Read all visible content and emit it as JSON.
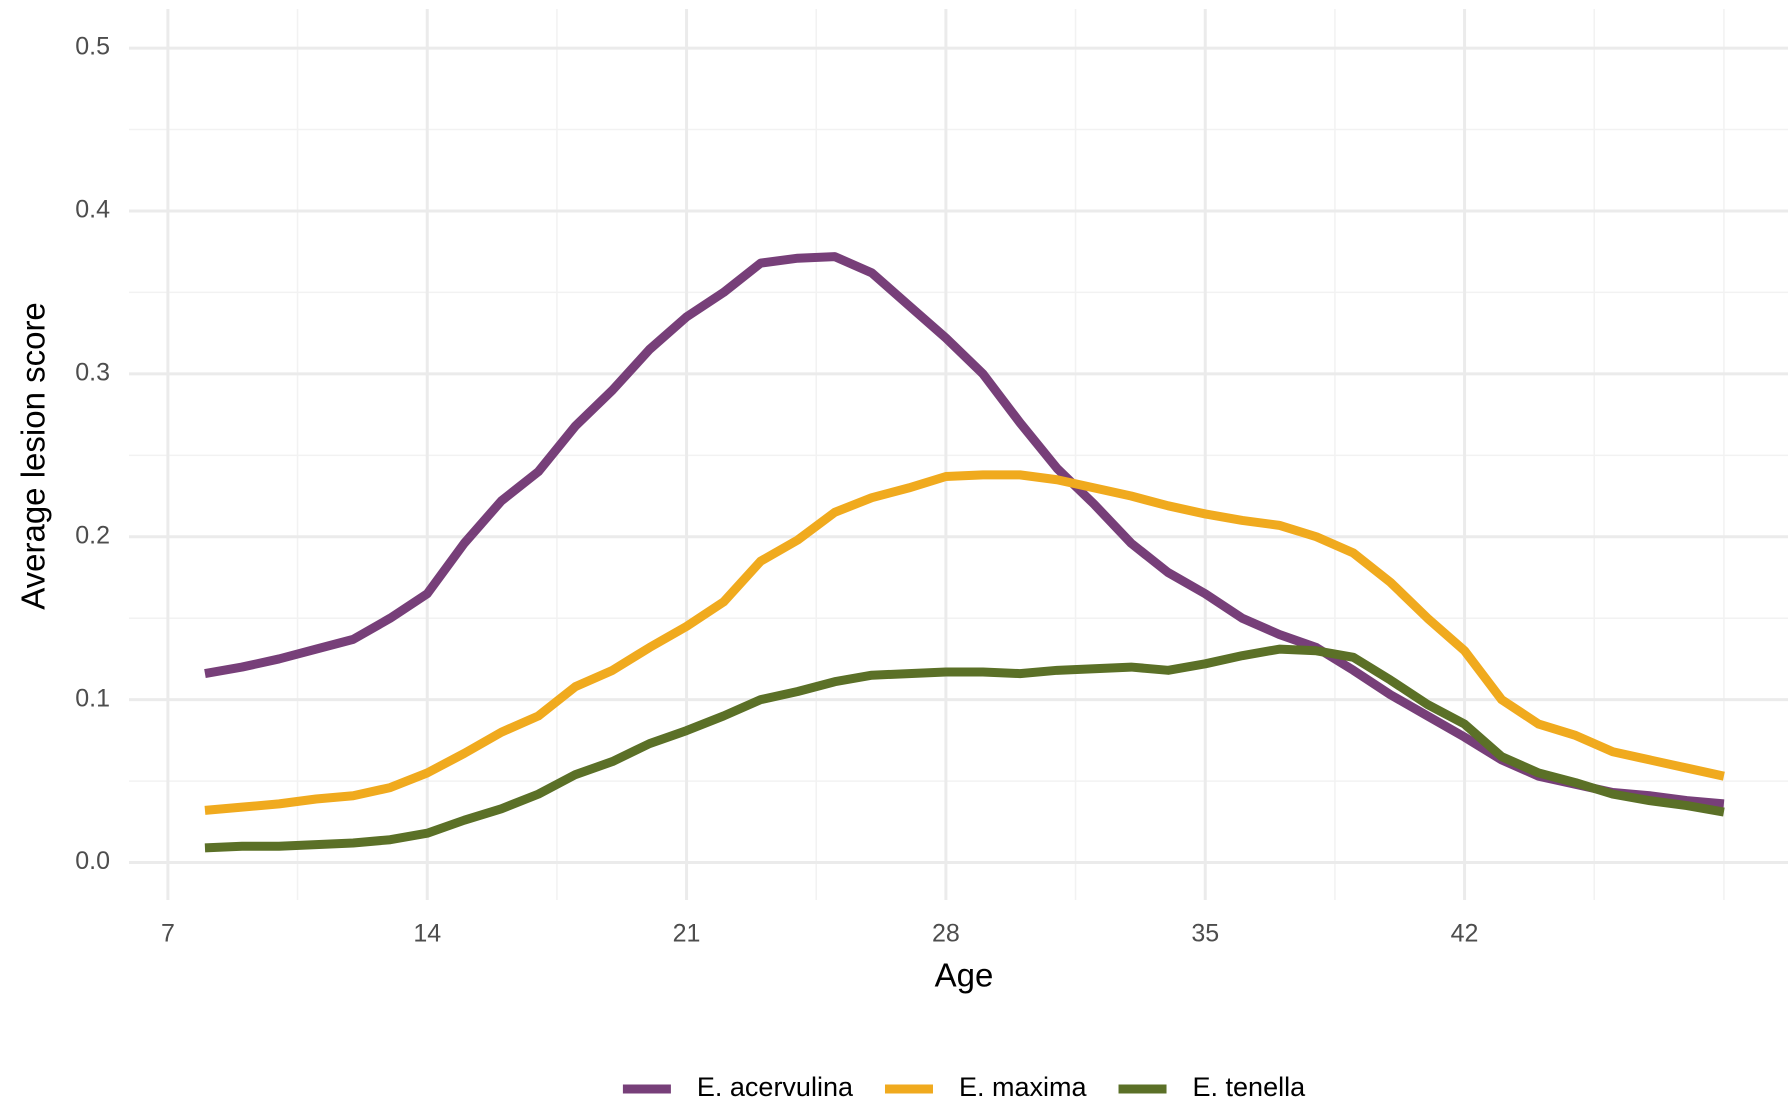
{
  "chart_data": {
    "type": "line",
    "x_label": "Age",
    "y_label": "Average lesion score",
    "x": [
      8,
      9,
      10,
      11,
      12,
      13,
      14,
      15,
      16,
      17,
      18,
      19,
      20,
      21,
      22,
      23,
      24,
      25,
      26,
      27,
      28,
      29,
      30,
      31,
      32,
      33,
      34,
      35,
      36,
      37,
      38,
      39,
      40,
      41,
      42,
      43,
      44,
      45,
      46,
      47,
      48,
      49
    ],
    "series": [
      {
        "name": "E. acervulina",
        "color": "#773f79",
        "values": [
          0.116,
          0.12,
          0.125,
          0.131,
          0.137,
          0.15,
          0.165,
          0.196,
          0.222,
          0.24,
          0.268,
          0.29,
          0.315,
          0.335,
          0.35,
          0.368,
          0.371,
          0.372,
          0.362,
          0.342,
          0.322,
          0.3,
          0.27,
          0.242,
          0.22,
          0.196,
          0.178,
          0.165,
          0.15,
          0.14,
          0.132,
          0.118,
          0.103,
          0.09,
          0.077,
          0.063,
          0.053,
          0.048,
          0.043,
          0.041,
          0.038,
          0.036
        ]
      },
      {
        "name": "E. maxima",
        "color": "#f0aa1e",
        "values": [
          0.032,
          0.034,
          0.036,
          0.039,
          0.041,
          0.046,
          0.055,
          0.067,
          0.08,
          0.09,
          0.108,
          0.118,
          0.132,
          0.145,
          0.16,
          0.185,
          0.198,
          0.215,
          0.224,
          0.23,
          0.237,
          0.238,
          0.238,
          0.235,
          0.23,
          0.225,
          0.219,
          0.214,
          0.21,
          0.207,
          0.2,
          0.19,
          0.172,
          0.15,
          0.13,
          0.1,
          0.085,
          0.078,
          0.068,
          0.063,
          0.058,
          0.053
        ]
      },
      {
        "name": "E. tenella",
        "color": "#5b7027",
        "values": [
          0.009,
          0.01,
          0.01,
          0.011,
          0.012,
          0.014,
          0.018,
          0.026,
          0.033,
          0.042,
          0.054,
          0.062,
          0.073,
          0.081,
          0.09,
          0.1,
          0.105,
          0.111,
          0.115,
          0.116,
          0.117,
          0.117,
          0.116,
          0.118,
          0.119,
          0.12,
          0.118,
          0.122,
          0.127,
          0.131,
          0.13,
          0.126,
          0.112,
          0.097,
          0.085,
          0.065,
          0.055,
          0.049,
          0.042,
          0.038,
          0.035,
          0.031
        ]
      }
    ],
    "xlim": [
      5.95,
      50.73
    ],
    "xticks": [
      7,
      14,
      21,
      28,
      35,
      42
    ],
    "ylim": [
      -0.023,
      0.524
    ],
    "yticks": [
      {
        "value": 0,
        "label": "0.0"
      },
      0.1,
      0.2,
      0.3,
      0.4,
      0.5
    ],
    "grid": true,
    "legend": "bottom"
  }
}
